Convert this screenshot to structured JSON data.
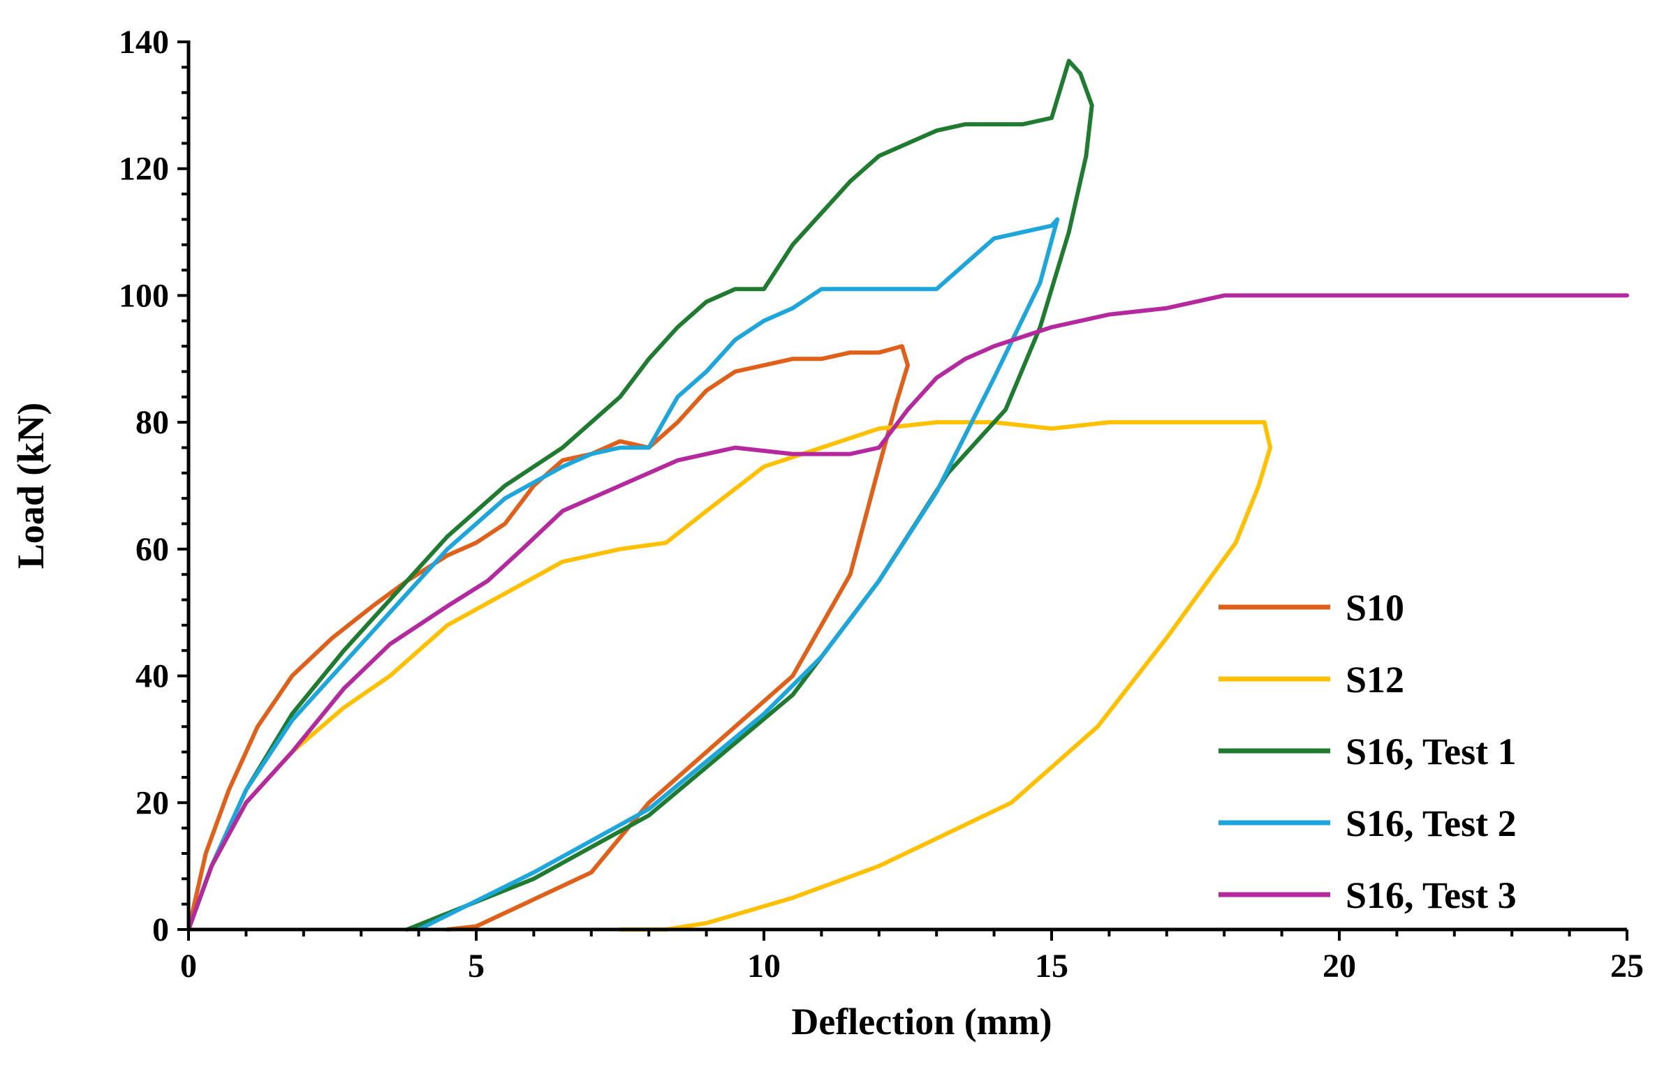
{
  "chart_data": {
    "type": "line",
    "title": "",
    "xlabel": "Deflection (mm)",
    "ylabel": "Load (kN)",
    "xlim": [
      0,
      25
    ],
    "ylim": [
      0,
      140
    ],
    "xticks": [
      0,
      5,
      10,
      15,
      20,
      25
    ],
    "yticks": [
      0,
      20,
      40,
      60,
      80,
      100,
      120,
      140
    ],
    "legend_position": "bottom-right",
    "series": [
      {
        "name": "S10",
        "color": "#E0601A",
        "x": [
          0,
          0.3,
          0.7,
          1.2,
          1.8,
          2.5,
          3.2,
          3.8,
          4.5,
          5.0,
          5.5,
          6.0,
          6.5,
          7.0,
          7.5,
          8.0,
          8.5,
          9.0,
          9.5,
          10.0,
          10.5,
          11.0,
          11.5,
          12.0,
          12.4,
          12.5,
          12.3,
          12.0,
          11.5,
          11.0,
          10.5,
          8.0,
          7.0,
          5.0,
          4.5
        ],
        "y": [
          0,
          12,
          22,
          32,
          40,
          46,
          51,
          55,
          59,
          61,
          64,
          70,
          74,
          75,
          77,
          76,
          80,
          85,
          88,
          89,
          90,
          90,
          91,
          91,
          92,
          89,
          83,
          73,
          56,
          48,
          40,
          20,
          9,
          0.5,
          0
        ]
      },
      {
        "name": "S12",
        "color": "#FFC000",
        "x": [
          0,
          0.4,
          1.0,
          1.8,
          2.7,
          3.5,
          4.5,
          5.5,
          6.5,
          7.5,
          8.3,
          9.0,
          10.0,
          11.0,
          12.0,
          13.0,
          14.0,
          15.0,
          16.0,
          17.0,
          18.0,
          18.7,
          18.8,
          18.6,
          18.2,
          17.0,
          15.8,
          14.3,
          12.0,
          10.5,
          9.0,
          8.3,
          7.5
        ],
        "y": [
          0,
          10,
          20,
          28,
          35,
          40,
          48,
          53,
          58,
          60,
          61,
          66,
          73,
          76,
          79,
          80,
          80,
          79,
          80,
          80,
          80,
          80,
          76,
          70,
          61,
          46,
          32,
          20,
          10,
          5,
          1,
          0,
          0
        ]
      },
      {
        "name": "S16, Test 1",
        "color": "#1E7B30",
        "x": [
          0,
          0.4,
          1.0,
          1.8,
          2.7,
          3.5,
          4.5,
          5.5,
          6.5,
          7.0,
          7.5,
          8.0,
          8.5,
          9.0,
          9.5,
          10.0,
          10.5,
          11.0,
          11.5,
          12.0,
          12.5,
          13.0,
          13.5,
          14.0,
          14.5,
          15.0,
          15.3,
          15.5,
          15.7,
          15.6,
          15.3,
          14.8,
          14.2,
          13.2,
          12.0,
          10.5,
          8.0,
          6.0,
          3.8
        ],
        "y": [
          0,
          10,
          22,
          34,
          44,
          52,
          62,
          70,
          76,
          80,
          84,
          90,
          95,
          99,
          101,
          101,
          108,
          113,
          118,
          122,
          124,
          126,
          127,
          127,
          127,
          128,
          137,
          135,
          130,
          122,
          110,
          95,
          82,
          72,
          55,
          37,
          18,
          8,
          0
        ]
      },
      {
        "name": "S16, Test 2",
        "color": "#1CA6DC",
        "x": [
          0,
          0.4,
          1.0,
          1.8,
          2.7,
          3.5,
          4.5,
          5.5,
          6.5,
          7.0,
          7.5,
          8.0,
          8.5,
          9.0,
          9.5,
          10.0,
          10.5,
          11.0,
          11.5,
          12.0,
          12.5,
          13.0,
          13.5,
          14.0,
          14.5,
          15.0,
          15.1,
          14.8,
          14.0,
          13.0,
          12.0,
          11.0,
          10.0,
          8.0,
          6.0,
          4.0
        ],
        "y": [
          0,
          10,
          22,
          33,
          42,
          50,
          60,
          68,
          73,
          75,
          76,
          76,
          84,
          88,
          93,
          96,
          98,
          101,
          101,
          101,
          101,
          101,
          105,
          109,
          110,
          111,
          112,
          102,
          87,
          69,
          55,
          43,
          34,
          19,
          9,
          0
        ]
      },
      {
        "name": "S16, Test 3",
        "color": "#B5299E",
        "x": [
          0,
          0.4,
          1.0,
          1.8,
          2.7,
          3.5,
          4.5,
          5.2,
          5.8,
          6.5,
          7.5,
          8.5,
          9.5,
          10.5,
          11.5,
          12.0,
          12.5,
          13.0,
          13.5,
          14.0,
          15.0,
          16.0,
          17.0,
          18.0,
          19.0,
          20.0,
          21.0,
          22.0,
          23.0,
          24.0,
          25.0
        ],
        "y": [
          0,
          10,
          20,
          28,
          38,
          45,
          51,
          55,
          60,
          66,
          70,
          74,
          76,
          75,
          75,
          76,
          82,
          87,
          90,
          92,
          95,
          97,
          98,
          100,
          100,
          100,
          100,
          100,
          100,
          100,
          100
        ]
      }
    ]
  }
}
